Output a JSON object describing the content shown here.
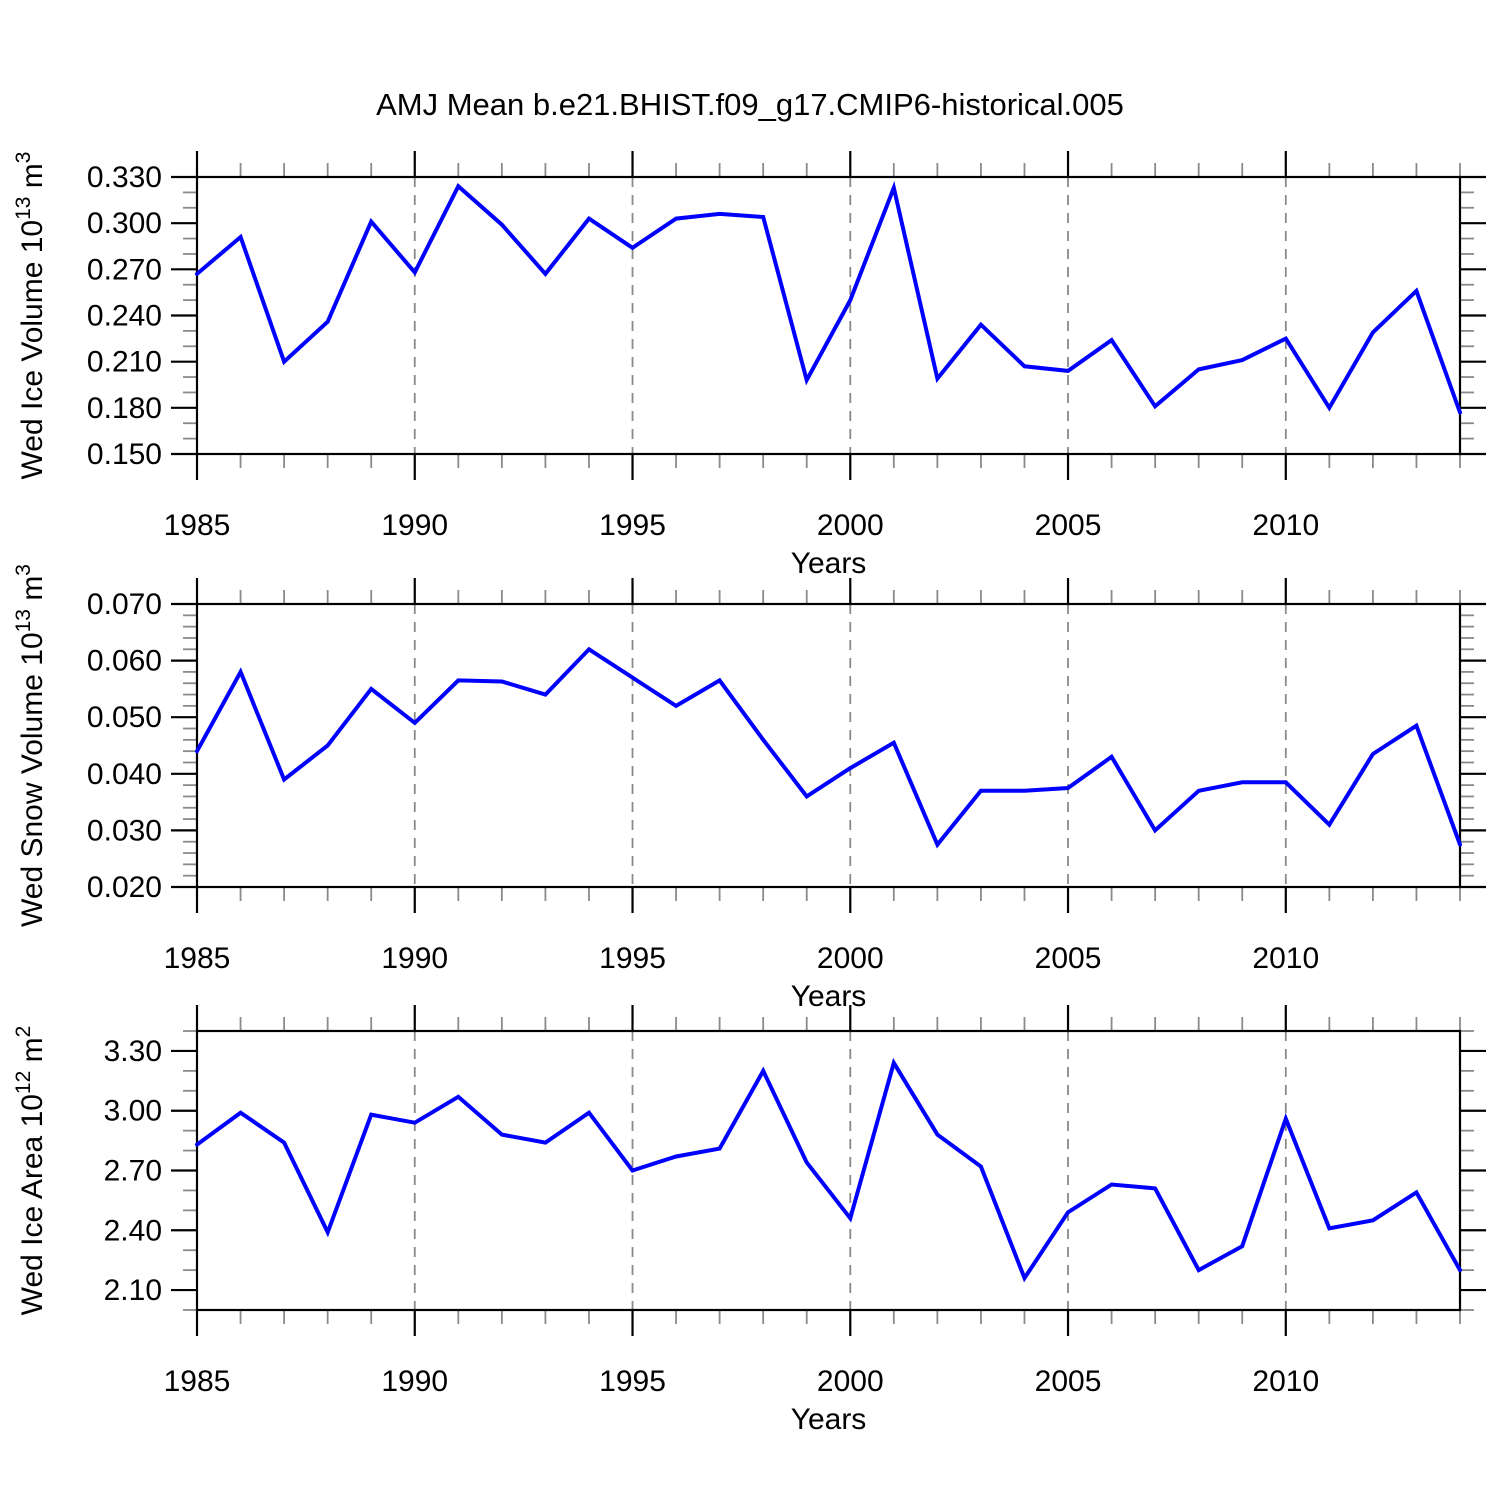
{
  "title": "AMJ Mean b.e21.BHIST.f09_g17.CMIP6-historical.005",
  "line_color": "#0000ff",
  "grid_color": "#898989",
  "chart_data": [
    {
      "type": "line",
      "panel": "ice-volume",
      "ylabel_parts": [
        {
          "t": "Wed Ice Volume 10"
        },
        {
          "t": "13",
          "sup": true
        },
        {
          "t": " m"
        },
        {
          "t": "3",
          "sup": true
        }
      ],
      "ylabel_text": "Wed Ice Volume 10^13 m^3",
      "xlabel": "Years",
      "x": [
        1985,
        1986,
        1987,
        1988,
        1989,
        1990,
        1991,
        1992,
        1993,
        1994,
        1995,
        1996,
        1997,
        1998,
        1999,
        2000,
        2001,
        2002,
        2003,
        2004,
        2005,
        2006,
        2007,
        2008,
        2009,
        2010,
        2011,
        2012,
        2013,
        2014
      ],
      "values": [
        0.267,
        0.291,
        0.21,
        0.236,
        0.301,
        0.268,
        0.324,
        0.299,
        0.267,
        0.303,
        0.284,
        0.303,
        0.306,
        0.304,
        0.198,
        0.25,
        0.323,
        0.199,
        0.234,
        0.207,
        0.204,
        0.224,
        0.181,
        0.205,
        0.211,
        0.225,
        0.18,
        0.229,
        0.256,
        0.177
      ],
      "xlim": [
        1985,
        2014
      ],
      "ylim": [
        0.15,
        0.33
      ],
      "ytick_values": [
        0.33,
        0.3,
        0.27,
        0.24,
        0.21,
        0.18,
        0.15
      ],
      "ytick_labels": [
        "0.330",
        "0.300",
        "0.270",
        "0.240",
        "0.210",
        "0.180",
        "0.150"
      ],
      "y_minor_step": 0.01,
      "xtick_values": [
        1985,
        1990,
        1995,
        2000,
        2005,
        2010
      ],
      "xtick_labels": [
        "1985",
        "1990",
        "1995",
        "2000",
        "2005",
        "2010"
      ],
      "x_minor_step": 1,
      "grid_x": [
        1990,
        1995,
        2000,
        2005,
        2010
      ],
      "grid_style": "vertical-dashed",
      "legend": "none"
    },
    {
      "type": "line",
      "panel": "snow-volume",
      "ylabel_parts": [
        {
          "t": "Wed Snow Volume 10"
        },
        {
          "t": "13",
          "sup": true
        },
        {
          "t": " m"
        },
        {
          "t": "3",
          "sup": true
        }
      ],
      "ylabel_text": "Wed Snow Volume 10^13 m^3",
      "xlabel": "Years",
      "x": [
        1985,
        1986,
        1987,
        1988,
        1989,
        1990,
        1991,
        1992,
        1993,
        1994,
        1995,
        1996,
        1997,
        1998,
        1999,
        2000,
        2001,
        2002,
        2003,
        2004,
        2005,
        2006,
        2007,
        2008,
        2009,
        2010,
        2011,
        2012,
        2013,
        2014
      ],
      "values": [
        0.044,
        0.058,
        0.039,
        0.045,
        0.055,
        0.049,
        0.0565,
        0.0563,
        0.054,
        0.062,
        0.057,
        0.052,
        0.0565,
        0.046,
        0.036,
        0.041,
        0.0455,
        0.0275,
        0.037,
        0.037,
        0.0375,
        0.043,
        0.03,
        0.037,
        0.0385,
        0.0385,
        0.031,
        0.0435,
        0.0485,
        0.0275
      ],
      "xlim": [
        1985,
        2014
      ],
      "ylim": [
        0.02,
        0.07
      ],
      "ytick_values": [
        0.07,
        0.06,
        0.05,
        0.04,
        0.03,
        0.02
      ],
      "ytick_labels": [
        "0.070",
        "0.060",
        "0.050",
        "0.040",
        "0.030",
        "0.020"
      ],
      "y_minor_step": 0.002,
      "xtick_values": [
        1985,
        1990,
        1995,
        2000,
        2005,
        2010
      ],
      "xtick_labels": [
        "1985",
        "1990",
        "1995",
        "2000",
        "2005",
        "2010"
      ],
      "x_minor_step": 1,
      "grid_x": [
        1990,
        1995,
        2000,
        2005,
        2010
      ],
      "grid_style": "vertical-dashed",
      "legend": "none"
    },
    {
      "type": "line",
      "panel": "ice-area",
      "ylabel_parts": [
        {
          "t": "Wed Ice Area 10"
        },
        {
          "t": "12",
          "sup": true
        },
        {
          "t": " m"
        },
        {
          "t": "2",
          "sup": true
        }
      ],
      "ylabel_text": "Wed Ice Area 10^12 m^2",
      "xlabel": "Years",
      "x": [
        1985,
        1986,
        1987,
        1988,
        1989,
        1990,
        1991,
        1992,
        1993,
        1994,
        1995,
        1996,
        1997,
        1998,
        1999,
        2000,
        2001,
        2002,
        2003,
        2004,
        2005,
        2006,
        2007,
        2008,
        2009,
        2010,
        2011,
        2012,
        2013,
        2014
      ],
      "values": [
        2.83,
        2.99,
        2.84,
        2.39,
        2.98,
        2.94,
        3.07,
        2.88,
        2.84,
        2.99,
        2.7,
        2.77,
        2.81,
        3.2,
        2.74,
        2.46,
        3.24,
        2.88,
        2.72,
        2.16,
        2.49,
        2.63,
        2.61,
        2.2,
        2.32,
        2.96,
        2.41,
        2.45,
        2.59,
        2.2
      ],
      "xlim": [
        1985,
        2014
      ],
      "ylim": [
        2.0,
        3.4
      ],
      "ytick_values": [
        3.3,
        3.0,
        2.7,
        2.4,
        2.1
      ],
      "ytick_labels": [
        "3.30",
        "3.00",
        "2.70",
        "2.40",
        "2.10"
      ],
      "y_minor_step": 0.1,
      "xtick_values": [
        1985,
        1990,
        1995,
        2000,
        2005,
        2010
      ],
      "xtick_labels": [
        "1985",
        "1990",
        "1995",
        "2000",
        "2005",
        "2010"
      ],
      "x_minor_step": 1,
      "grid_x": [
        1990,
        1995,
        2000,
        2005,
        2010
      ],
      "grid_style": "vertical-dashed",
      "legend": "none"
    }
  ]
}
